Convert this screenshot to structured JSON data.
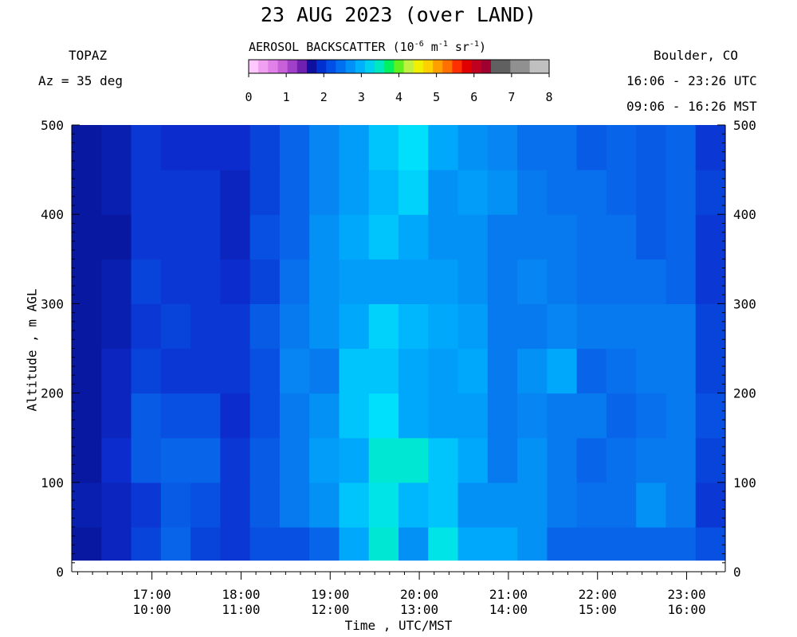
{
  "header": {
    "title": "23 AUG 2023 (over LAND)",
    "instrument": "TOPAZ",
    "azimuth": "Az =  35 deg",
    "location": "Boulder, CO",
    "utc_range": "16:06 - 23:26 UTC",
    "mst_range": "09:06 - 16:26 MST"
  },
  "colorbar": {
    "title_prefix": "AEROSOL BACKSCATTER (10",
    "exp1": "-6",
    "mid1": " m",
    "exp2": "-1",
    "mid2": " sr",
    "exp3": "-1",
    "suffix": ")",
    "ticks": [
      "0",
      "1",
      "2",
      "3",
      "4",
      "5",
      "6",
      "7",
      "8"
    ],
    "colors": [
      "#ffc8ff",
      "#f0a0f0",
      "#e080e8",
      "#c860d8",
      "#a040c8",
      "#7020b0",
      "#1010a0",
      "#0030d0",
      "#0050e8",
      "#0070f0",
      "#0090f8",
      "#00b0ff",
      "#00d0f0",
      "#00e8c0",
      "#00f060",
      "#60f020",
      "#c0f040",
      "#f0f000",
      "#ffd000",
      "#ffa000",
      "#ff7000",
      "#ff3000",
      "#e00000",
      "#c00020",
      "#a00030",
      "#606060",
      "#606060",
      "#909090",
      "#909090",
      "#c0c0c0",
      "#c0c0c0"
    ]
  },
  "chart_data": {
    "type": "heatmap",
    "title": "23 AUG 2023 (over LAND)",
    "xlabel": "Time , UTC/MST",
    "ylabel": "Altitude , m AGL",
    "x_range_utc": [
      "16:06",
      "23:26"
    ],
    "y_range": [
      0,
      500
    ],
    "x_ticks_utc": [
      "17:00",
      "18:00",
      "19:00",
      "20:00",
      "21:00",
      "22:00",
      "23:00"
    ],
    "x_ticks_mst": [
      "10:00",
      "11:00",
      "12:00",
      "13:00",
      "14:00",
      "15:00",
      "16:00"
    ],
    "y_ticks": [
      "0",
      "100",
      "200",
      "300",
      "400",
      "500"
    ],
    "colorbar_range": [
      0,
      8
    ],
    "columns_utc": [
      "16:06",
      "16:26",
      "16:46",
      "17:06",
      "17:26",
      "17:46",
      "18:06",
      "18:26",
      "18:46",
      "19:06",
      "19:26",
      "19:46",
      "20:06",
      "20:26",
      "20:46",
      "21:06",
      "21:26",
      "21:46",
      "22:06",
      "22:26",
      "22:46",
      "23:06"
    ],
    "altitudes_m": [
      25,
      75,
      125,
      175,
      225,
      275,
      325,
      375,
      425,
      475
    ],
    "backscatter": [
      [
        0.8,
        1.0,
        1.3,
        1.6,
        1.3,
        1.2,
        1.4,
        1.4,
        1.6,
        2.2,
        2.8,
        2.0,
        2.7,
        2.2,
        2.2,
        2.0,
        1.6,
        1.6,
        1.6,
        1.6,
        1.6,
        1.4
      ],
      [
        0.9,
        1.0,
        1.2,
        1.5,
        1.4,
        1.2,
        1.5,
        1.8,
        2.0,
        2.4,
        2.7,
        2.3,
        2.4,
        2.0,
        2.0,
        2.0,
        1.8,
        1.7,
        1.7,
        2.0,
        1.8,
        1.2
      ],
      [
        0.8,
        1.1,
        1.5,
        1.6,
        1.6,
        1.2,
        1.5,
        1.8,
        2.1,
        2.2,
        2.8,
        2.8,
        2.4,
        2.2,
        1.8,
        2.0,
        1.8,
        1.6,
        1.7,
        1.8,
        1.8,
        1.3
      ],
      [
        0.8,
        1.0,
        1.5,
        1.4,
        1.4,
        1.1,
        1.4,
        1.8,
        2.0,
        2.4,
        2.6,
        2.2,
        2.1,
        2.1,
        1.8,
        1.9,
        1.8,
        1.8,
        1.6,
        1.7,
        1.8,
        1.4
      ],
      [
        0.8,
        1.0,
        1.3,
        1.2,
        1.2,
        1.2,
        1.4,
        1.9,
        1.8,
        2.4,
        2.4,
        2.2,
        2.1,
        2.2,
        1.8,
        2.0,
        2.2,
        1.6,
        1.7,
        1.8,
        1.8,
        1.3
      ],
      [
        0.8,
        0.9,
        1.2,
        1.3,
        1.2,
        1.2,
        1.5,
        1.8,
        2.0,
        2.2,
        2.5,
        2.3,
        2.2,
        2.1,
        1.8,
        1.8,
        1.9,
        1.8,
        1.8,
        1.8,
        1.8,
        1.3
      ],
      [
        0.8,
        0.9,
        1.3,
        1.2,
        1.2,
        1.1,
        1.3,
        1.7,
        2.0,
        2.1,
        2.1,
        2.1,
        2.1,
        2.0,
        1.8,
        1.9,
        1.8,
        1.7,
        1.7,
        1.7,
        1.6,
        1.2
      ],
      [
        0.8,
        0.8,
        1.2,
        1.2,
        1.2,
        1.0,
        1.4,
        1.6,
        2.0,
        2.2,
        2.4,
        2.2,
        2.0,
        2.0,
        1.8,
        1.8,
        1.8,
        1.7,
        1.7,
        1.5,
        1.6,
        1.2
      ],
      [
        0.8,
        0.9,
        1.2,
        1.2,
        1.2,
        1.0,
        1.3,
        1.6,
        1.9,
        2.1,
        2.3,
        2.5,
        2.0,
        2.1,
        2.0,
        1.8,
        1.7,
        1.7,
        1.6,
        1.5,
        1.6,
        1.3
      ],
      [
        0.8,
        0.9,
        1.2,
        1.1,
        1.1,
        1.1,
        1.3,
        1.6,
        1.9,
        2.1,
        2.4,
        2.6,
        2.2,
        2.0,
        1.9,
        1.7,
        1.7,
        1.5,
        1.6,
        1.5,
        1.6,
        1.2
      ]
    ]
  }
}
